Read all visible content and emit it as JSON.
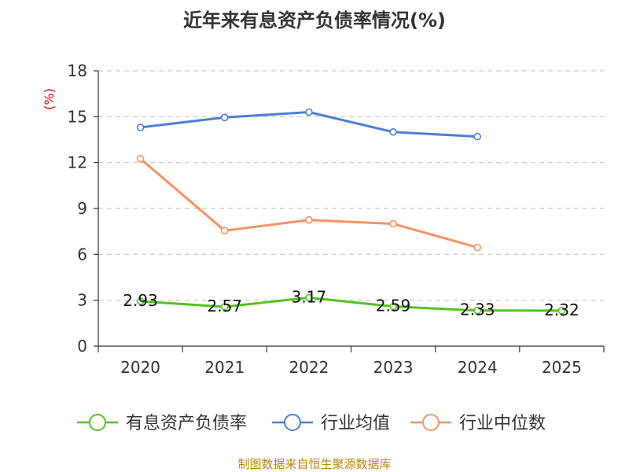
{
  "chart_data": {
    "type": "line",
    "title": "近年来有息资产负债率情况(%)",
    "ylabel": "(%)",
    "xlabel": "",
    "categories": [
      "2020",
      "2021",
      "2022",
      "2023",
      "2024",
      "2025"
    ],
    "ylim": [
      0,
      18
    ],
    "yticks": [
      0,
      3,
      6,
      9,
      12,
      15,
      18
    ],
    "grid": true,
    "legend_position": "bottom",
    "series": [
      {
        "name": "有息资产负债率",
        "color": "#52c41a",
        "values": [
          2.93,
          2.57,
          3.17,
          2.59,
          2.33,
          2.32
        ],
        "labels": [
          "2.93",
          "2.57",
          "3.17",
          "2.59",
          "2.33",
          "2.32"
        ],
        "show_labels": true
      },
      {
        "name": "行业均值",
        "color": "#4a7fd6",
        "values": [
          14.3,
          14.95,
          15.3,
          14.0,
          13.7,
          null
        ],
        "show_labels": false
      },
      {
        "name": "行业中位数",
        "color": "#f79163",
        "values": [
          12.25,
          7.55,
          8.25,
          8.0,
          6.45,
          null
        ],
        "show_labels": false
      }
    ],
    "source": "制图数据来自恒生聚源数据库"
  }
}
